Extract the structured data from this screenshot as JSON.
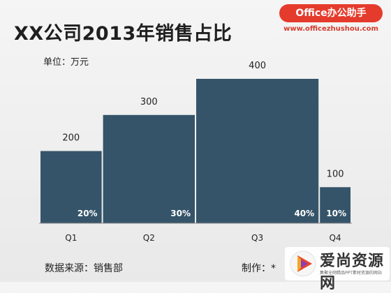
{
  "header": {
    "title": "XX公司2013年销售占比",
    "unit": "单位：万元"
  },
  "footer": {
    "source": "数据来源：销售部",
    "author": "制作：*"
  },
  "branding": {
    "badge": "Office办公助手",
    "url": "www.officezhushou.com",
    "badge_color": "#e53b2c"
  },
  "watermark": {
    "name": "爱尚资源网",
    "subtitle": "集聚全网精品PPT素材资源的网站",
    "logo": "play-triangle-logo"
  },
  "chart_data": {
    "type": "bar",
    "title": "XX公司2013年销售占比",
    "ylabel": "单位：万元",
    "categories": [
      "Q1",
      "Q2",
      "Q3",
      "Q4"
    ],
    "values": [
      200,
      300,
      400,
      100
    ],
    "share_labels": [
      "20%",
      "30%",
      "40%",
      "10%"
    ],
    "widths_by_share": [
      20,
      30,
      40,
      10
    ],
    "ylim": [
      0,
      400
    ],
    "grid": false,
    "legend": "none",
    "bar_color": "#35546a"
  }
}
